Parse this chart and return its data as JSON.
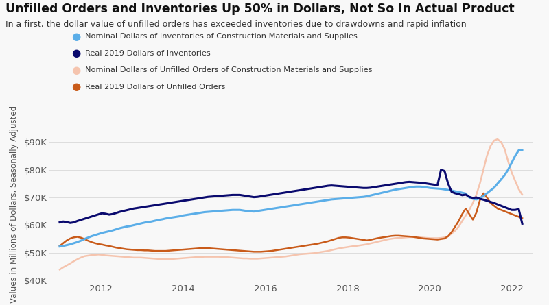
{
  "title": "Unfilled Orders and Inventories Up 50% in Dollars, Not So In Actual Product",
  "subtitle": "In a first, the dollar value of unfilled orders has exceeded inventories due to drawdowns and rapid inflation",
  "ylabel": "Values in Millions of Dollars, Seasonally Adjusted",
  "ylim": [
    40000,
    95000
  ],
  "yticks": [
    40000,
    50000,
    60000,
    70000,
    80000,
    90000
  ],
  "xlim_start": 2010.75,
  "xlim_end": 2022.5,
  "bg_color": "#f8f8f8",
  "title_color": "#111111",
  "subtitle_color": "#333333",
  "series": {
    "nominal_inv": {
      "label": "Nominal Dollars of Inventories of Construction Materials and Supplies",
      "color": "#5baee8",
      "linewidth": 2.2
    },
    "real_inv": {
      "label": "Real 2019 Dollars of Inventories",
      "color": "#0a0a6e",
      "linewidth": 2.2
    },
    "nominal_unf": {
      "label": "Nominal Dollars of Unfilled Orders of Construction Materials and Supplies",
      "color": "#f5c4ae",
      "linewidth": 1.8
    },
    "real_unf": {
      "label": "Real 2019 Dollars of Unfilled Orders",
      "color": "#c95b1a",
      "linewidth": 1.8
    }
  },
  "nominal_inv": [
    52300,
    52500,
    52800,
    53100,
    53500,
    53900,
    54400,
    55000,
    55500,
    56000,
    56400,
    56800,
    57200,
    57500,
    57800,
    58100,
    58500,
    58900,
    59200,
    59500,
    59700,
    60000,
    60300,
    60600,
    60900,
    61100,
    61300,
    61600,
    61900,
    62100,
    62400,
    62600,
    62800,
    63000,
    63200,
    63500,
    63700,
    63900,
    64100,
    64300,
    64500,
    64700,
    64800,
    64900,
    65000,
    65100,
    65200,
    65300,
    65400,
    65500,
    65500,
    65500,
    65300,
    65100,
    65000,
    64900,
    65100,
    65300,
    65500,
    65700,
    65900,
    66100,
    66300,
    66500,
    66700,
    66900,
    67100,
    67300,
    67500,
    67700,
    67900,
    68100,
    68300,
    68500,
    68700,
    68900,
    69100,
    69300,
    69400,
    69500,
    69600,
    69700,
    69800,
    69900,
    70000,
    70100,
    70200,
    70400,
    70700,
    71000,
    71300,
    71600,
    71900,
    72200,
    72500,
    72800,
    73000,
    73200,
    73400,
    73600,
    73800,
    73900,
    73900,
    73800,
    73600,
    73400,
    73300,
    73200,
    73100,
    72900,
    72700,
    72500,
    72200,
    72000,
    71700,
    71400,
    70000,
    69500,
    69300,
    69700,
    70500,
    71500,
    72500,
    73500,
    75000,
    76500,
    78000,
    80000,
    82500,
    85000,
    87000,
    87000
  ],
  "real_inv": [
    61000,
    61300,
    61100,
    60800,
    61000,
    61500,
    61900,
    62300,
    62700,
    63100,
    63500,
    63900,
    64300,
    64100,
    63800,
    64000,
    64400,
    64800,
    65100,
    65400,
    65700,
    66000,
    66200,
    66400,
    66600,
    66800,
    67000,
    67200,
    67400,
    67600,
    67800,
    68000,
    68200,
    68400,
    68600,
    68800,
    69000,
    69200,
    69400,
    69600,
    69800,
    70000,
    70200,
    70300,
    70400,
    70500,
    70600,
    70700,
    70800,
    70900,
    70900,
    70900,
    70700,
    70500,
    70300,
    70100,
    70200,
    70400,
    70600,
    70800,
    71000,
    71200,
    71400,
    71600,
    71800,
    72000,
    72200,
    72400,
    72600,
    72800,
    73000,
    73200,
    73400,
    73600,
    73800,
    74000,
    74200,
    74300,
    74200,
    74100,
    74000,
    73900,
    73800,
    73700,
    73600,
    73500,
    73400,
    73400,
    73500,
    73700,
    73900,
    74100,
    74300,
    74500,
    74700,
    74900,
    75100,
    75300,
    75500,
    75600,
    75500,
    75400,
    75300,
    75200,
    75000,
    74800,
    74600,
    74500,
    80000,
    79500,
    75000,
    72000,
    71500,
    71200,
    70800,
    71000,
    70200,
    69800,
    70000,
    69500,
    69200,
    68800,
    68400,
    68000,
    67500,
    67000,
    66500,
    66000,
    65500,
    65500,
    65800,
    60500
  ],
  "nominal_unf": [
    44000,
    44800,
    45500,
    46200,
    47000,
    47700,
    48300,
    48800,
    49000,
    49200,
    49300,
    49400,
    49300,
    49100,
    49000,
    48900,
    48800,
    48700,
    48600,
    48500,
    48400,
    48300,
    48300,
    48300,
    48200,
    48100,
    48000,
    47900,
    47800,
    47700,
    47700,
    47700,
    47800,
    47900,
    48000,
    48100,
    48200,
    48300,
    48400,
    48500,
    48500,
    48600,
    48600,
    48600,
    48600,
    48600,
    48500,
    48500,
    48400,
    48300,
    48200,
    48100,
    48000,
    48000,
    47900,
    47900,
    47900,
    48000,
    48100,
    48200,
    48300,
    48400,
    48500,
    48600,
    48700,
    48900,
    49100,
    49300,
    49500,
    49600,
    49700,
    49800,
    49900,
    50100,
    50300,
    50500,
    50700,
    51000,
    51300,
    51600,
    51800,
    52000,
    52200,
    52400,
    52500,
    52700,
    52900,
    53100,
    53400,
    53700,
    54000,
    54300,
    54600,
    54900,
    55100,
    55300,
    55400,
    55500,
    55600,
    55700,
    55700,
    55700,
    55600,
    55500,
    55400,
    55300,
    55300,
    55300,
    55400,
    55600,
    56000,
    57000,
    58000,
    59500,
    61500,
    63500,
    65500,
    68000,
    71000,
    75000,
    80000,
    85000,
    88500,
    90500,
    91000,
    90000,
    87500,
    83000,
    79000,
    76000,
    73000,
    71000
  ],
  "real_unf": [
    52500,
    53500,
    54500,
    55200,
    55600,
    55800,
    55500,
    55000,
    54400,
    53900,
    53500,
    53200,
    53000,
    52700,
    52500,
    52200,
    51900,
    51700,
    51500,
    51300,
    51200,
    51100,
    51000,
    51000,
    50900,
    50900,
    50800,
    50700,
    50700,
    50700,
    50700,
    50800,
    50900,
    51000,
    51100,
    51200,
    51300,
    51400,
    51500,
    51600,
    51700,
    51700,
    51700,
    51600,
    51500,
    51400,
    51300,
    51200,
    51100,
    51000,
    50900,
    50800,
    50700,
    50600,
    50500,
    50400,
    50400,
    50400,
    50500,
    50600,
    50700,
    50900,
    51100,
    51300,
    51500,
    51700,
    51900,
    52100,
    52300,
    52500,
    52700,
    52900,
    53100,
    53300,
    53600,
    53900,
    54200,
    54600,
    55000,
    55400,
    55600,
    55600,
    55500,
    55300,
    55100,
    54900,
    54700,
    54500,
    54700,
    55000,
    55300,
    55500,
    55700,
    55900,
    56100,
    56200,
    56200,
    56100,
    56000,
    55900,
    55800,
    55600,
    55400,
    55200,
    55100,
    55000,
    54900,
    54800,
    55000,
    55200,
    56000,
    57500,
    59500,
    61500,
    64000,
    66000,
    64000,
    62000,
    64500,
    69000,
    71500,
    70000,
    68000,
    67000,
    66000,
    65500,
    65000,
    64500,
    64000,
    63500,
    63000,
    62500
  ]
}
